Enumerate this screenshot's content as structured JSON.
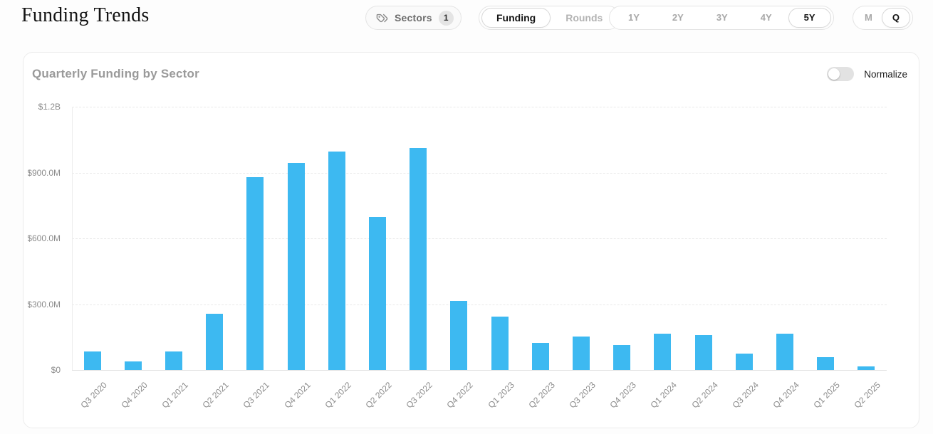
{
  "page": {
    "title": "Funding Trends"
  },
  "header": {
    "sectors_button": {
      "label": "Sectors",
      "badge": "1",
      "icon": "tags-icon"
    },
    "view_toggle": {
      "options": [
        "Funding",
        "Rounds"
      ],
      "selected": "Funding"
    },
    "range_selector": {
      "options": [
        "1Y",
        "2Y",
        "3Y",
        "4Y",
        "5Y"
      ],
      "selected": "5Y"
    },
    "granularity_toggle": {
      "options": [
        "M",
        "Q"
      ],
      "selected": "Q"
    }
  },
  "chart_card": {
    "title": "Quarterly Funding by Sector",
    "normalize_label": "Normalize",
    "normalize_on": false
  },
  "chart_data": {
    "type": "bar",
    "title": "Quarterly Funding by Sector",
    "categories": [
      "Q3 2020",
      "Q4 2020",
      "Q1 2021",
      "Q2 2021",
      "Q3 2021",
      "Q4 2021",
      "Q1 2022",
      "Q2 2022",
      "Q3 2022",
      "Q4 2022",
      "Q1 2023",
      "Q2 2023",
      "Q3 2023",
      "Q4 2023",
      "Q1 2024",
      "Q2 2024",
      "Q3 2024",
      "Q4 2024",
      "Q1 2025",
      "Q2 2025"
    ],
    "values": [
      83,
      38,
      85,
      256,
      880,
      944,
      995,
      697,
      1012,
      316,
      242,
      123,
      152,
      114,
      164,
      160,
      73,
      164,
      60,
      15
    ],
    "unit": "USD millions",
    "xlabel": "",
    "ylabel": "",
    "ylim": [
      0,
      1200
    ],
    "yticks": [
      0,
      300,
      600,
      900,
      1200
    ],
    "ytick_labels": [
      "$0",
      "$300.0M",
      "$600.0M",
      "$900.0M",
      "$1.2B"
    ],
    "bar_color": "#3db9f1",
    "grid": true,
    "legend": null
  }
}
